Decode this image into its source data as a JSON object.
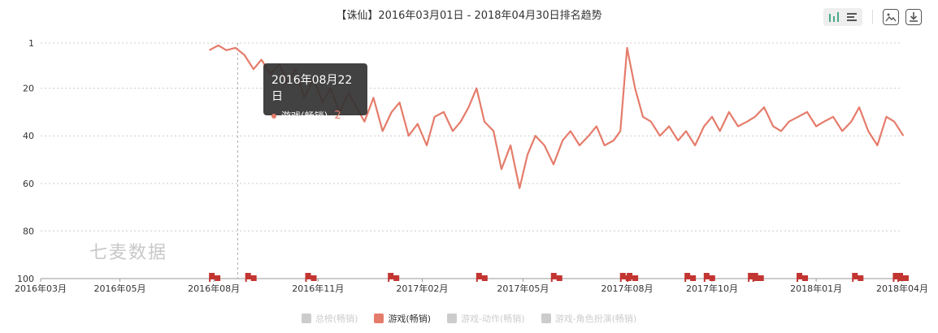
{
  "colors": {
    "series": "#e57c6b",
    "flag": "#c23531",
    "grid": "#cccccc",
    "inactive": "#cccccc",
    "tooltip_bg": "#323232"
  },
  "toolbar": {
    "icons": [
      "bar-view-icon",
      "list-view-icon",
      "save-image-icon",
      "download-icon"
    ]
  },
  "watermark": "七麦数据",
  "tooltip": {
    "date": "2016年08月22日",
    "series": "游戏(畅销)",
    "value": "2"
  },
  "legend": [
    {
      "label": "总榜(畅销)",
      "active": false
    },
    {
      "label": "游戏(畅销)",
      "active": true
    },
    {
      "label": "游戏-动作(畅销)",
      "active": false
    },
    {
      "label": "游戏-角色扮演(畅销)",
      "active": false
    }
  ],
  "chart_data": {
    "type": "line",
    "title": "【诛仙】2016年03月01日 - 2018年04月30日排名趋势",
    "y_inverted": true,
    "ylim": [
      1,
      100
    ],
    "y_ticks": [
      "1",
      "20",
      "40",
      "60",
      "80",
      "100"
    ],
    "x_ticks": [
      "2016年03月",
      "2016年05月",
      "2016年08月",
      "2016年11月",
      "2017年02月",
      "2017年05月",
      "2017年08月",
      "2017年10月",
      "2018年01月",
      "2018年04月"
    ],
    "grid": true,
    "legend_position": "bottom",
    "series": [
      {
        "name": "游戏(畅销)",
        "x": [
          "2016-07-28",
          "2016-08-05",
          "2016-08-12",
          "2016-08-20",
          "2016-08-28",
          "2016-09-05",
          "2016-09-12",
          "2016-09-20",
          "2016-09-28",
          "2016-10-05",
          "2016-10-12",
          "2016-10-20",
          "2016-10-28",
          "2016-11-05",
          "2016-11-12",
          "2016-11-20",
          "2016-11-28",
          "2016-12-05",
          "2016-12-12",
          "2016-12-20",
          "2016-12-28",
          "2017-01-05",
          "2017-01-12",
          "2017-01-20",
          "2017-01-28",
          "2017-02-05",
          "2017-02-12",
          "2017-02-20",
          "2017-02-28",
          "2017-03-07",
          "2017-03-14",
          "2017-03-21",
          "2017-03-28",
          "2017-04-05",
          "2017-04-12",
          "2017-04-20",
          "2017-04-28",
          "2017-05-05",
          "2017-05-12",
          "2017-05-20",
          "2017-05-28",
          "2017-06-05",
          "2017-06-12",
          "2017-06-20",
          "2017-06-28",
          "2017-07-05",
          "2017-07-12",
          "2017-07-20",
          "2017-07-26",
          "2017-08-01",
          "2017-08-08",
          "2017-08-15",
          "2017-08-22",
          "2017-08-30",
          "2017-09-07",
          "2017-09-15",
          "2017-09-22",
          "2017-09-30",
          "2017-10-08",
          "2017-10-15",
          "2017-10-22",
          "2017-10-30",
          "2017-11-07",
          "2017-11-15",
          "2017-11-22",
          "2017-11-30",
          "2017-12-08",
          "2017-12-15",
          "2017-12-22",
          "2017-12-30",
          "2018-01-07",
          "2018-01-15",
          "2018-01-22",
          "2018-01-30",
          "2018-02-07",
          "2018-02-15",
          "2018-02-22",
          "2018-03-02",
          "2018-03-10",
          "2018-03-18",
          "2018-03-25",
          "2018-04-02"
        ],
        "values": [
          4,
          2,
          4,
          3,
          6,
          12,
          8,
          14,
          10,
          18,
          12,
          24,
          16,
          26,
          20,
          30,
          22,
          28,
          34,
          24,
          38,
          30,
          26,
          40,
          35,
          44,
          32,
          30,
          38,
          34,
          28,
          20,
          34,
          38,
          54,
          44,
          62,
          48,
          40,
          44,
          52,
          42,
          38,
          44,
          40,
          36,
          44,
          42,
          38,
          3,
          20,
          32,
          34,
          40,
          36,
          42,
          38,
          44,
          36,
          32,
          38,
          30,
          36,
          34,
          32,
          28,
          36,
          38,
          34,
          32,
          30,
          36,
          34,
          32,
          38,
          34,
          28,
          38,
          44,
          32,
          34,
          40
        ]
      }
    ],
    "event_flags": [
      "2016-08-01",
      "2016-09-02",
      "2016-10-25",
      "2017-01-06",
      "2017-03-25",
      "2017-05-30",
      "2017-07-30",
      "2017-08-05",
      "2017-09-25",
      "2017-10-12",
      "2017-11-20",
      "2017-11-24",
      "2018-01-02",
      "2018-02-20",
      "2018-03-28",
      "2018-04-01"
    ]
  }
}
